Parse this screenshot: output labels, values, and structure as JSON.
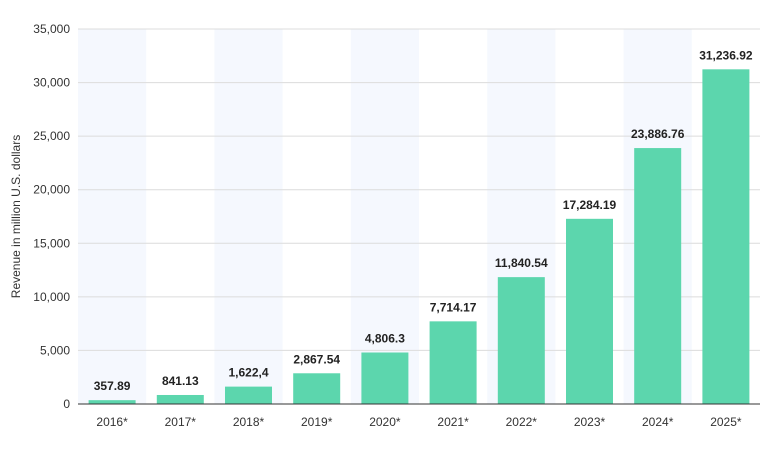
{
  "chart_data": {
    "type": "bar",
    "categories": [
      "2016*",
      "2017*",
      "2018*",
      "2019*",
      "2020*",
      "2021*",
      "2022*",
      "2023*",
      "2024*",
      "2025*"
    ],
    "values": [
      357.89,
      841.13,
      1622.4,
      2867.54,
      4806.3,
      7714.17,
      11840.54,
      17284.19,
      23886.76,
      31236.92
    ],
    "data_labels": [
      "357.89",
      "841.13",
      "1,622,4",
      "2,867.54",
      "4,806.3",
      "7,714.17",
      "11,840.54",
      "17,284.19",
      "23,886.76",
      "31,236.92"
    ],
    "ylabel": "Revenue in million U.S. dollars",
    "ylim": [
      0,
      35000
    ],
    "yticks": [
      0,
      5000,
      10000,
      15000,
      20000,
      25000,
      30000,
      35000
    ],
    "ytick_labels": [
      "0",
      "5,000",
      "10,000",
      "15,000",
      "20,000",
      "25,000",
      "30,000",
      "35,000"
    ],
    "grid": true,
    "bar_color": "#5cd6ad",
    "band_color": "#f5f8fe"
  }
}
